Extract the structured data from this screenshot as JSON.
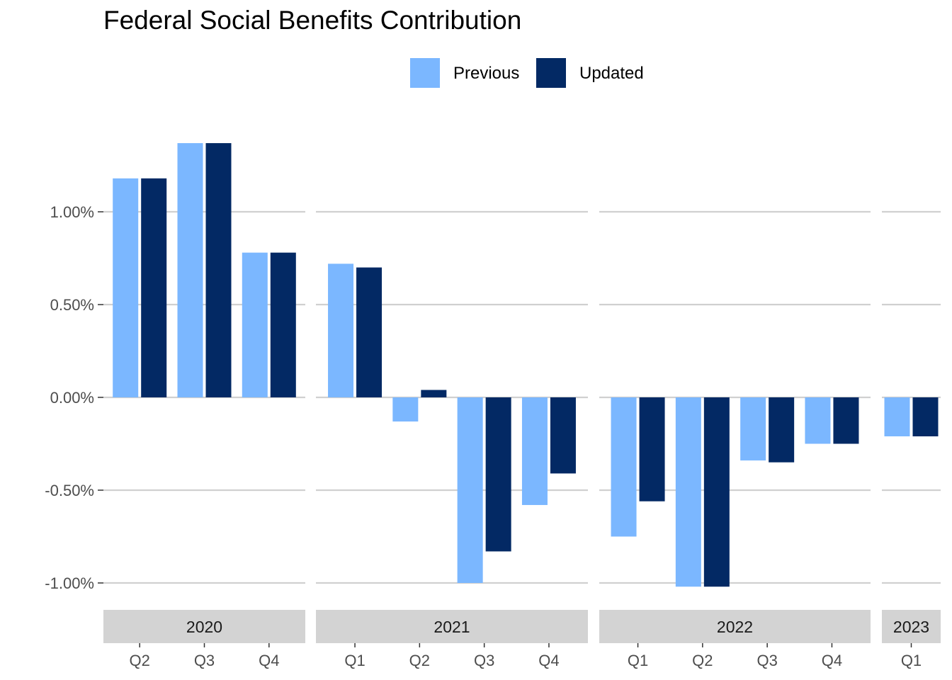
{
  "chart_data": {
    "type": "bar",
    "title": "Federal Social Benefits Contribution",
    "xlabel": "",
    "ylabel": "",
    "ylim": [
      -1.1,
      1.5
    ],
    "y_ticks": [
      -1.0,
      -0.5,
      0.0,
      0.5,
      1.0
    ],
    "y_tick_labels": [
      "-1.00%",
      "-0.50%",
      "0.00%",
      "0.50%",
      "1.00%"
    ],
    "legend_position": "top",
    "grid": "horizontal major",
    "colors": {
      "Previous": "#7bb7ff",
      "Updated": "#032964",
      "grid": "#d0d0d0",
      "strip": "#d3d3d3"
    },
    "panels": [
      {
        "label": "2020",
        "categories": [
          "Q2",
          "Q3",
          "Q4"
        ]
      },
      {
        "label": "2021",
        "categories": [
          "Q1",
          "Q2",
          "Q3",
          "Q4"
        ]
      },
      {
        "label": "2022",
        "categories": [
          "Q1",
          "Q2",
          "Q3",
          "Q4"
        ]
      },
      {
        "label": "2023",
        "categories": [
          "Q1"
        ]
      }
    ],
    "series": [
      {
        "name": "Previous",
        "values": [
          1.18,
          1.37,
          0.78,
          0.72,
          -0.13,
          -1.0,
          -0.58,
          -0.75,
          -1.02,
          -0.34,
          -0.25,
          -0.21
        ]
      },
      {
        "name": "Updated",
        "values": [
          1.18,
          1.37,
          0.78,
          0.7,
          0.04,
          -0.83,
          -0.41,
          -0.56,
          -1.02,
          -0.35,
          -0.25,
          -0.21
        ]
      }
    ]
  }
}
